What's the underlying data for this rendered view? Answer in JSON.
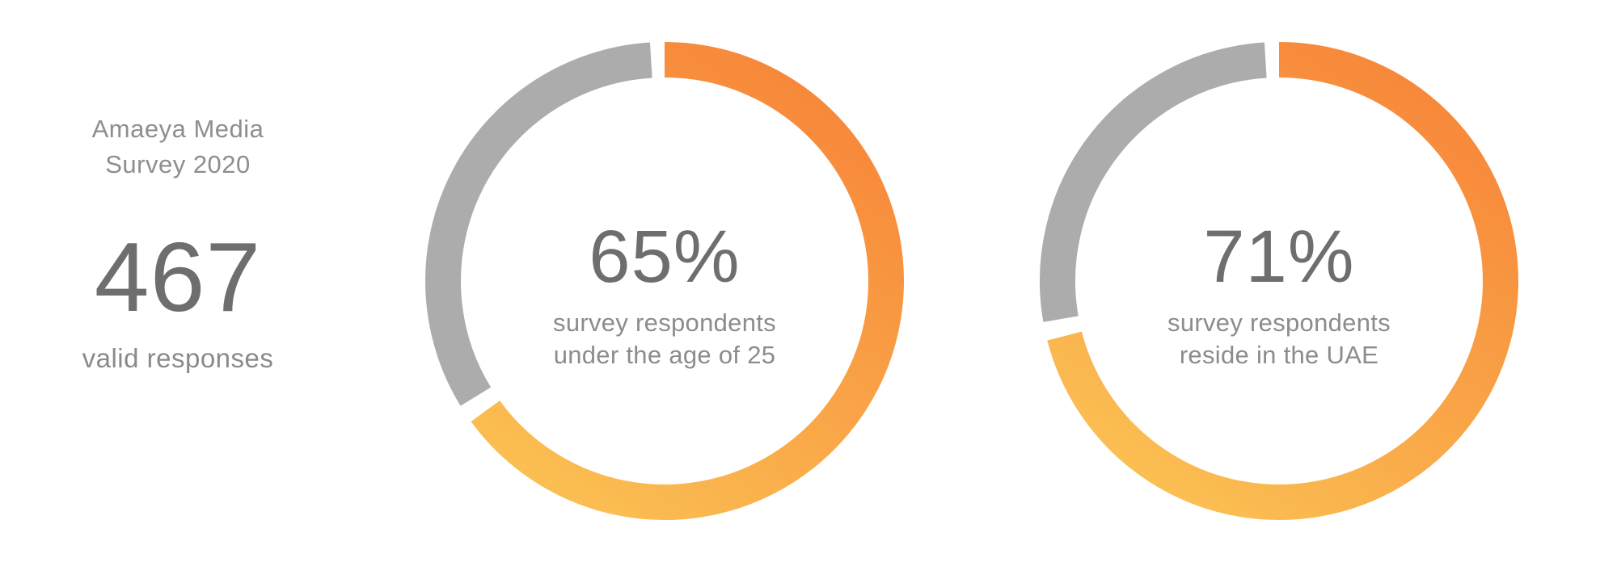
{
  "stat_panel": {
    "title_line1": "Amaeya Media",
    "title_line2": "Survey 2020",
    "big_number": "467",
    "subtitle": "valid responses"
  },
  "chart_data": [
    {
      "type": "donut",
      "value_pct": 65,
      "label": "65%",
      "caption_line1": "survey respondents",
      "caption_line2": "under the age of 25",
      "start_angle_deg": 0,
      "direction": "clockwise",
      "segments": [
        {
          "name": "under the age of 25",
          "value": 65,
          "color": "orange-yellow gradient"
        },
        {
          "name": "remainder",
          "value": 35,
          "color": "#ACACAC"
        }
      ]
    },
    {
      "type": "donut",
      "value_pct": 71,
      "label": "71%",
      "caption_line1": "survey respondents",
      "caption_line2": "reside in the UAE",
      "start_angle_deg": 0,
      "direction": "clockwise",
      "segments": [
        {
          "name": "reside in the UAE",
          "value": 71,
          "color": "orange-yellow gradient"
        },
        {
          "name": "remainder",
          "value": 29,
          "color": "#ACACAC"
        }
      ]
    }
  ],
  "colors": {
    "arc_gradient_start": "#F7873A",
    "arc_gradient_end": "#FBBE52",
    "remainder_arc": "#ACACAC",
    "number_text": "#6E6E6E",
    "caption_text": "#8C8C8C",
    "title_text": "#8E8E8E"
  }
}
